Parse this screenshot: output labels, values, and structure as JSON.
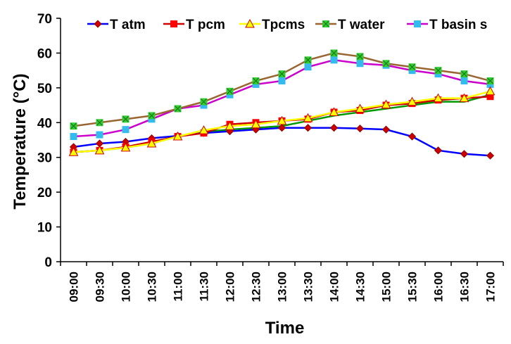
{
  "chart_data": {
    "type": "line",
    "title": "",
    "xlabel": "Time",
    "ylabel": "Temperature (°C)",
    "ylim": [
      0,
      70
    ],
    "yticks": [
      0,
      10,
      20,
      30,
      40,
      50,
      60,
      70
    ],
    "grid": false,
    "legend_position": "top",
    "categories": [
      "09:00",
      "09:30",
      "10:00",
      "10:30",
      "11:00",
      "11:30",
      "12:00",
      "12:30",
      "13:00",
      "13:30",
      "14:00",
      "14:30",
      "15:00",
      "15:30",
      "16:00",
      "16:30",
      "17:00"
    ],
    "series": [
      {
        "name": "T atm",
        "color": "#0000ff",
        "marker": "diamond",
        "marker_color": "#cc0000",
        "values": [
          33,
          34,
          34.5,
          35.5,
          36.2,
          37,
          37.5,
          38,
          38.5,
          38.5,
          38.5,
          38.3,
          38,
          36,
          32,
          31,
          30.5
        ]
      },
      {
        "name": "T pcm",
        "color": "#cc0000",
        "marker": "square",
        "marker_color": "#ff0000",
        "values": [
          31.5,
          32,
          33,
          34.5,
          36,
          37,
          39.5,
          40,
          40.5,
          41,
          43,
          43.5,
          45,
          45.5,
          46.5,
          47,
          47.5
        ]
      },
      {
        "name": "Tpcms",
        "color": "#ffff00",
        "marker": "triangle",
        "marker_color": "#ffff00",
        "values": [
          31.5,
          32,
          32.8,
          34,
          36,
          37.8,
          39,
          39.5,
          40.5,
          41.3,
          43,
          44,
          45.2,
          46,
          47,
          47,
          49
        ]
      },
      {
        "name": "T water",
        "color": "#996633",
        "marker": "x-square",
        "marker_color": "#33cc33",
        "values": [
          39,
          40,
          41,
          42,
          44,
          46,
          49,
          52,
          54,
          58,
          60,
          59,
          57,
          56,
          55,
          54,
          52
        ]
      },
      {
        "name": "T basin s",
        "color": "#cc00cc",
        "marker": "square",
        "marker_color": "#33bbee",
        "values": [
          36,
          36.5,
          38,
          41,
          44,
          45,
          48,
          51,
          52,
          56,
          58,
          57,
          56.5,
          55,
          54,
          52,
          51
        ]
      }
    ],
    "extra_lines": [
      {
        "color": "#009900",
        "values": [
          31.5,
          32,
          32.8,
          34,
          36,
          37.3,
          38,
          38.5,
          39,
          40.5,
          42,
          43,
          44,
          45,
          46,
          46,
          48
        ]
      }
    ]
  }
}
